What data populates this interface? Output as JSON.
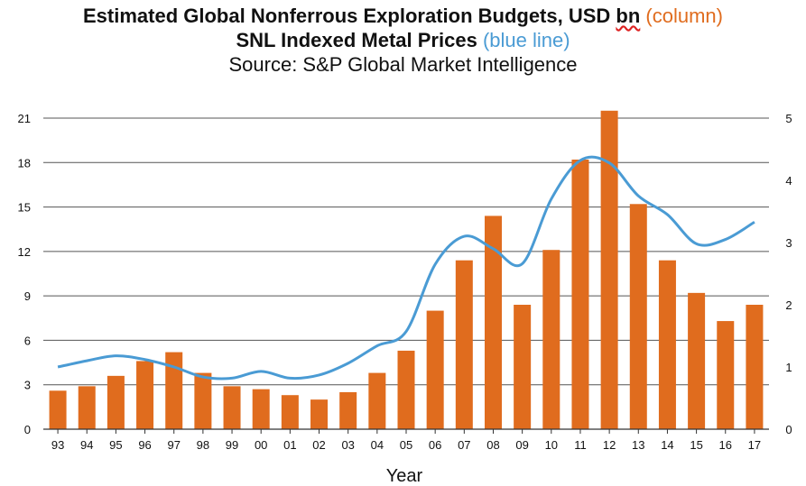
{
  "title": {
    "line1_main": "Estimated Global Nonferrous Exploration Budgets, USD ",
    "line1_unit": "bn",
    "line1_series": "(column)",
    "line2_main": "SNL Indexed Metal Prices ",
    "line2_series": "(blue line)",
    "line3": "Source: S&P Global Market Intelligence"
  },
  "colors": {
    "bars": "#E06C1E",
    "line": "#4A9BD4",
    "grid": "#555555"
  },
  "chart_data": {
    "type": "bar+line",
    "categories": [
      "93",
      "94",
      "95",
      "96",
      "97",
      "98",
      "99",
      "00",
      "01",
      "02",
      "03",
      "04",
      "05",
      "06",
      "07",
      "08",
      "09",
      "10",
      "11",
      "12",
      "13",
      "14",
      "15",
      "16",
      "17"
    ],
    "xlabel": "Year",
    "y_left": {
      "ylim": [
        0,
        21
      ],
      "ticks": [
        0,
        3,
        6,
        9,
        12,
        15,
        18,
        21
      ]
    },
    "y_right": {
      "ylim": [
        0,
        5
      ],
      "ticks": [
        0,
        1,
        2,
        3,
        4,
        5
      ]
    },
    "grid": true,
    "series": [
      {
        "kind": "bar",
        "axis": "left",
        "values": [
          2.6,
          2.9,
          3.6,
          4.6,
          5.2,
          3.8,
          2.9,
          2.7,
          2.3,
          2.0,
          2.5,
          3.8,
          5.3,
          8.0,
          11.4,
          14.4,
          8.4,
          12.1,
          18.2,
          21.5,
          15.2,
          11.4,
          9.2,
          7.3,
          8.4
        ]
      },
      {
        "kind": "line",
        "axis": "right",
        "values": [
          1.0,
          1.1,
          1.18,
          1.12,
          1.0,
          0.84,
          0.82,
          0.93,
          0.82,
          0.87,
          1.06,
          1.34,
          1.57,
          2.65,
          3.1,
          2.9,
          2.66,
          3.7,
          4.32,
          4.28,
          3.75,
          3.45,
          2.98,
          3.05,
          3.33
        ]
      }
    ]
  }
}
